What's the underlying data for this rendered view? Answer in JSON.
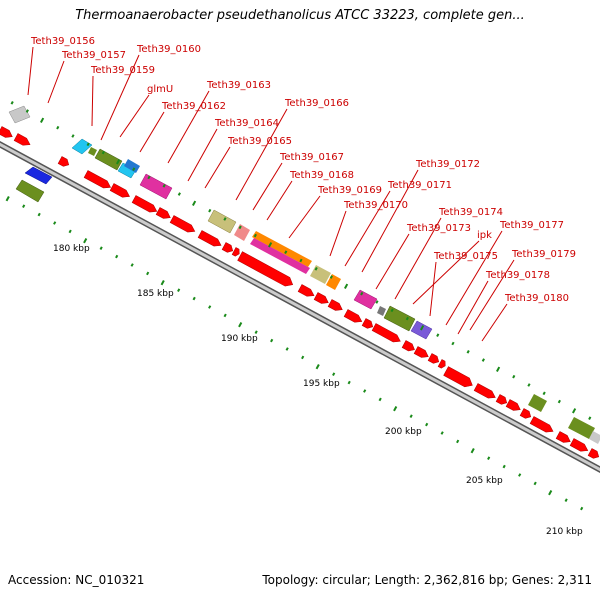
{
  "title": "Thermoanaerobacter pseudethanolicus ATCC 33223, complete gen...",
  "footer": {
    "accession": "Accession: NC_010321",
    "summary": "Topology: circular; Length: 2,362,816 bp; Genes: 2,311"
  },
  "colors": {
    "forward_cds": "#ff0000",
    "label_text": "#cc0000",
    "backbone": "#999999",
    "tick": "#1a8a1a"
  },
  "kbp_labels": [
    "180 kbp",
    "185 kbp",
    "190 kbp",
    "195 kbp",
    "200 kbp",
    "205 kbp",
    "210 kbp"
  ],
  "gene_labels": [
    "Teth39_0156",
    "Teth39_0157",
    "Teth39_0159",
    "Teth39_0160",
    "glmU",
    "Teth39_0162",
    "Teth39_0163",
    "Teth39_0164",
    "Teth39_0165",
    "Teth39_0166",
    "Teth39_0167",
    "Teth39_0168",
    "Teth39_0169",
    "Teth39_0170",
    "Teth39_0171",
    "Teth39_0172",
    "Teth39_0173",
    "Teth39_0174",
    "ipk",
    "Teth39_0175",
    "Teth39_0177",
    "Teth39_0178",
    "Teth39_0179",
    "Teth39_0180"
  ]
}
